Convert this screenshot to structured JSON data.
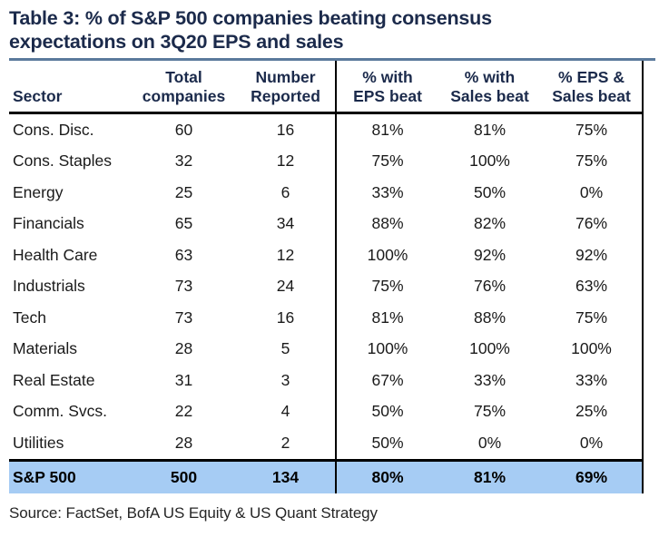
{
  "figure": {
    "title": "Table 3: % of S&P 500 companies beating consensus expectations on 3Q20 EPS and sales",
    "title_lines": [
      "Table 3: % of S&P 500 companies beating consensus",
      "expectations on 3Q20 EPS and sales"
    ],
    "source": "Source: FactSet, BofA US Equity & US Quant Strategy"
  },
  "colors": {
    "title_navy": "#1b2a4b",
    "rule_slate": "#5b7a9c",
    "highlight_blue": "#a6ccf4",
    "border_black": "#000000"
  },
  "chart_data": {
    "type": "table",
    "title": "Table 3: % of S&P 500 companies beating consensus expectations on 3Q20 EPS and sales",
    "source": "Source: FactSet, BofA US Equity & US Quant Strategy",
    "columns": [
      {
        "key": "sector",
        "label": "Sector",
        "line1": "",
        "line2": "Sector"
      },
      {
        "key": "total-companies",
        "label": "Total companies",
        "line1": "Total",
        "line2": "companies"
      },
      {
        "key": "number-reported",
        "label": "Number Reported",
        "line1": "Number",
        "line2": "Reported"
      },
      {
        "key": "eps-beat",
        "label": "% with EPS beat",
        "line1": "% with",
        "line2": "EPS beat"
      },
      {
        "key": "sales-beat",
        "label": "% with Sales beat",
        "line1": "% with",
        "line2": "Sales beat"
      },
      {
        "key": "eps-and-sales-beat",
        "label": "% EPS & Sales beat",
        "line1": "% EPS &",
        "line2": "Sales beat"
      }
    ],
    "rows": [
      [
        "Cons. Disc.",
        "60",
        "16",
        "81%",
        "81%",
        "75%"
      ],
      [
        "Cons. Staples",
        "32",
        "12",
        "75%",
        "100%",
        "75%"
      ],
      [
        "Energy",
        "25",
        "6",
        "33%",
        "50%",
        "0%"
      ],
      [
        "Financials",
        "65",
        "34",
        "88%",
        "82%",
        "76%"
      ],
      [
        "Health Care",
        "63",
        "12",
        "100%",
        "92%",
        "92%"
      ],
      [
        "Industrials",
        "73",
        "24",
        "75%",
        "76%",
        "63%"
      ],
      [
        "Tech",
        "73",
        "16",
        "81%",
        "88%",
        "75%"
      ],
      [
        "Materials",
        "28",
        "5",
        "100%",
        "100%",
        "100%"
      ],
      [
        "Real Estate",
        "31",
        "3",
        "67%",
        "33%",
        "33%"
      ],
      [
        "Comm. Svcs.",
        "22",
        "4",
        "50%",
        "75%",
        "25%"
      ],
      [
        "Utilities",
        "28",
        "2",
        "50%",
        "0%",
        "0%"
      ]
    ],
    "total_row": [
      "S&P 500",
      "500",
      "134",
      "80%",
      "81%",
      "69%"
    ]
  }
}
